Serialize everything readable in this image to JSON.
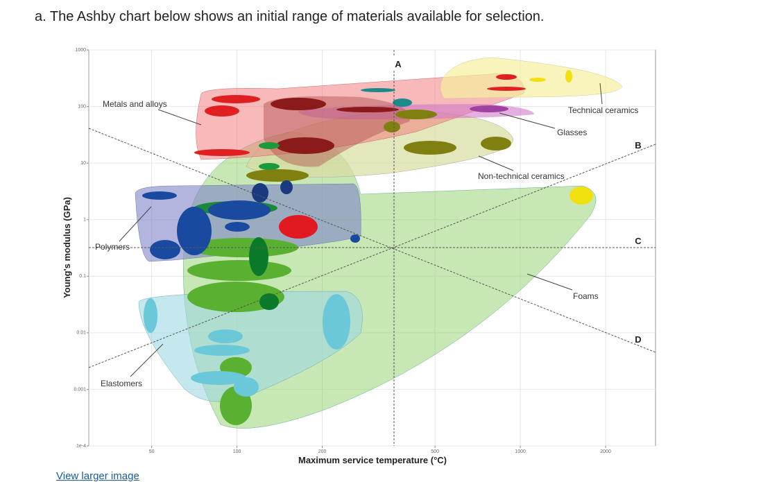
{
  "heading": "a. The Ashby chart below shows an initial range of materials available for selection.",
  "link": "View larger image",
  "chart_data": {
    "type": "ashby",
    "xlabel": "Maximum service temperature (°C)",
    "ylabel": "Young's modulus (GPa)",
    "xscale": "log",
    "yscale": "log",
    "xlim": [
      30,
      3000
    ],
    "ylim": [
      0.0001,
      1000
    ],
    "xticks": [
      50,
      100,
      200,
      500,
      1000,
      2000
    ],
    "yticks": [
      1000,
      100,
      10,
      1,
      0.1,
      0.01,
      0.001,
      {
        "value": 0.0001,
        "label": "1e-4"
      }
    ],
    "grid": true,
    "annotations": [
      "Metals and alloys",
      "Technical ceramics",
      "Glasses",
      "Non-technical ceramics",
      "Polymers",
      "Foams",
      "Elastomers"
    ],
    "guide_labels": [
      "A",
      "B",
      "C",
      "D"
    ]
  }
}
